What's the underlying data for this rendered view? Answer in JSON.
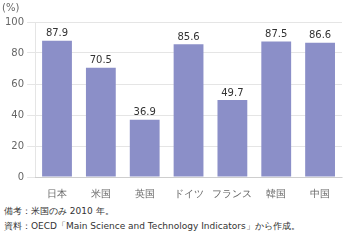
{
  "chart_data": {
    "type": "bar",
    "ylabel": "(%)",
    "categories": [
      "日本",
      "米国",
      "英国",
      "ドイツ",
      "フランス",
      "韓国",
      "中国"
    ],
    "values": [
      87.9,
      70.5,
      36.9,
      85.6,
      49.7,
      87.5,
      86.6
    ],
    "color": "#8b8fc8",
    "ylim": [
      0,
      100
    ],
    "yticks": [
      0,
      20,
      40,
      60,
      80,
      100
    ],
    "grid": true,
    "data_labels": true,
    "annotations": [
      "備考：米国のみ 2010 年。",
      "資料：OECD「Main Science and Technology Indicators」から作成。"
    ]
  }
}
